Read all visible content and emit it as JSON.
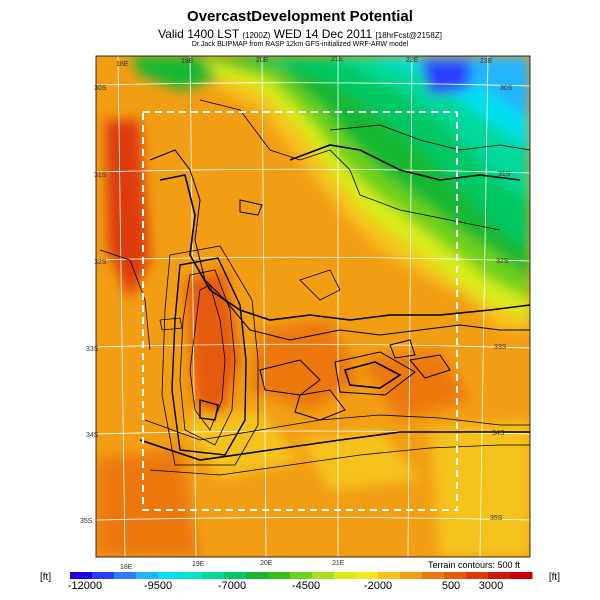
{
  "header": {
    "title": "OvercastDevelopment Potential",
    "subtitle_main": "Valid 1400 LST",
    "subtitle_code": "(1200Z)",
    "subtitle_date": "WED 14 Dec 2011",
    "subtitle_fcst": "[18hrFcst@2158Z]",
    "source": "Dr.Jack BLIPMAP from RASP 12km GFS-initialized WRF-ARW model"
  },
  "map": {
    "lon_labels_top": [
      "18E",
      "19E",
      "20E",
      "21E",
      "22E",
      "23E"
    ],
    "lon_labels_bottom": [
      "18E",
      "19E",
      "20E",
      "21E"
    ],
    "lat_labels_left": [
      "30S",
      "31S",
      "32S",
      "33S",
      "34S",
      "35S"
    ],
    "lat_labels_right": [
      "30S",
      "31S",
      "32S",
      "33S",
      "34S",
      "35S"
    ],
    "terrain_note": "Terrain contours: 500 ft"
  },
  "colorbar": {
    "unit": "[ft]",
    "tick_labels": [
      "-12000",
      "-9500",
      "-7000",
      "-4500",
      "-2000",
      "500",
      "3000"
    ],
    "colors": [
      "#1a00e6",
      "#2a3cff",
      "#2f7bff",
      "#20b4ff",
      "#00e0f0",
      "#00e6c8",
      "#00d99a",
      "#00c864",
      "#16b832",
      "#36c21a",
      "#6ed21a",
      "#a6e01a",
      "#d9ec1a",
      "#f5e61a",
      "#f5c21a",
      "#f29e14",
      "#ec780e",
      "#e65a0a",
      "#de3a08",
      "#cc1a06",
      "#c80000"
    ]
  }
}
